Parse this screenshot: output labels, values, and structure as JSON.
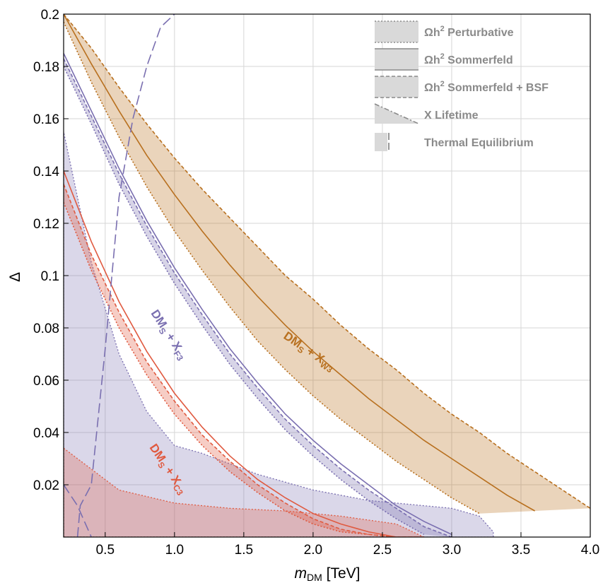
{
  "chart_data": {
    "type": "area",
    "xlabel_main": "m",
    "xlabel_sub": "DM",
    "xlabel_unit": " [TeV]",
    "ylabel": "Δ",
    "xlim": [
      0.2,
      4.0
    ],
    "ylim": [
      0.0,
      0.2
    ],
    "grid": true,
    "legend_position": "top-right",
    "x_ticks": [
      0.5,
      1.0,
      1.5,
      2.0,
      2.5,
      3.0,
      3.5,
      4.0
    ],
    "x_tick_labels": [
      "0.5",
      "1.0",
      "1.5",
      "2.0",
      "2.5",
      "3.0",
      "3.5",
      "4.0"
    ],
    "y_ticks": [
      0.02,
      0.04,
      0.06,
      0.08,
      0.1,
      0.12,
      0.14,
      0.16,
      0.18,
      0.2
    ],
    "y_tick_labels": [
      "0.02",
      "0.04",
      "0.06",
      "0.08",
      "0.1",
      "0.12",
      "0.14",
      "0.16",
      "0.18",
      "0.2"
    ],
    "colors": {
      "purple": "#7a6fb0",
      "orange": "#b8701f",
      "red": "#e05a40",
      "legend_gray": "#8a8a8a"
    },
    "legend": [
      {
        "label": "Ωh",
        "sup": "2",
        "rest": " Perturbative",
        "style": "dotted"
      },
      {
        "label": "Ωh",
        "sup": "2",
        "rest": " Sommerfeld",
        "style": "solid"
      },
      {
        "label": "Ωh",
        "sup": "2",
        "rest": " Sommerfeld + BSF",
        "style": "dashed"
      },
      {
        "label": "X Lifetime",
        "sup": "",
        "rest": "",
        "style": "dot-dash"
      },
      {
        "label": "Thermal Equilibrium",
        "sup": "",
        "rest": "",
        "style": "long-dash"
      }
    ],
    "annotations": [
      {
        "main": "DM",
        "sub1": "S",
        "mid": " + X",
        "sub2": "F3",
        "color": "#7a6fb0"
      },
      {
        "main": "DM",
        "sub1": "S",
        "mid": " + X",
        "sub2": "W3",
        "color": "#b8701f"
      },
      {
        "main": "DM",
        "sub1": "S",
        "mid": " + X",
        "sub2": "C3",
        "color": "#e05a40"
      }
    ],
    "series": [
      {
        "model_index": 0,
        "color": "#b8701f",
        "curves": [
          {
            "style": "dotted",
            "x": [
              0.2,
              0.4,
              0.6,
              0.8,
              1.0,
              1.2,
              1.4,
              1.6,
              1.8,
              2.0,
              2.2,
              2.4,
              2.6,
              2.8,
              3.0,
              3.2
            ],
            "y": [
              0.197,
              0.174,
              0.153,
              0.134,
              0.117,
              0.102,
              0.088,
              0.075,
              0.064,
              0.054,
              0.045,
              0.037,
              0.029,
              0.022,
              0.015,
              0.009
            ]
          },
          {
            "style": "solid",
            "x": [
              0.2,
              0.4,
              0.6,
              0.8,
              1.0,
              1.2,
              1.4,
              1.6,
              1.8,
              2.0,
              2.2,
              2.4,
              2.6,
              2.8,
              3.0,
              3.2,
              3.4,
              3.6
            ],
            "y": [
              0.2,
              0.181,
              0.163,
              0.146,
              0.131,
              0.117,
              0.104,
              0.092,
              0.081,
              0.071,
              0.062,
              0.053,
              0.045,
              0.037,
              0.03,
              0.023,
              0.016,
              0.01
            ]
          },
          {
            "style": "dashed",
            "x": [
              0.2,
              0.4,
              0.6,
              0.8,
              1.0,
              1.2,
              1.4,
              1.6,
              1.8,
              2.0,
              2.2,
              2.4,
              2.6,
              2.8,
              3.0,
              3.2,
              3.4,
              3.6,
              3.8,
              4.0
            ],
            "y": [
              0.2,
              0.187,
              0.172,
              0.158,
              0.145,
              0.133,
              0.122,
              0.111,
              0.1,
              0.091,
              0.081,
              0.072,
              0.064,
              0.055,
              0.047,
              0.04,
              0.032,
              0.025,
              0.018,
              0.011
            ]
          }
        ]
      },
      {
        "model_index": 1,
        "color": "#7a6fb0",
        "curves": [
          {
            "style": "dotted",
            "x": [
              0.2,
              0.4,
              0.6,
              0.8,
              1.0,
              1.2,
              1.4,
              1.6,
              1.8,
              2.0,
              2.2,
              2.4,
              2.6,
              2.8
            ],
            "y": [
              0.18,
              0.158,
              0.135,
              0.115,
              0.097,
              0.081,
              0.066,
              0.053,
              0.041,
              0.031,
              0.022,
              0.014,
              0.007,
              0.001
            ]
          },
          {
            "style": "solid",
            "x": [
              0.2,
              0.4,
              0.6,
              0.8,
              1.0,
              1.2,
              1.4,
              1.6,
              1.8,
              2.0,
              2.2,
              2.4,
              2.6,
              2.8,
              3.0
            ],
            "y": [
              0.185,
              0.163,
              0.141,
              0.121,
              0.103,
              0.087,
              0.072,
              0.059,
              0.047,
              0.037,
              0.028,
              0.02,
              0.012,
              0.006,
              0.001
            ]
          },
          {
            "style": "dashed",
            "x": [
              0.2,
              0.4,
              0.6,
              0.8,
              1.0,
              1.2,
              1.4,
              1.6,
              1.8,
              2.0,
              2.2,
              2.4,
              2.6,
              2.8,
              3.0
            ],
            "y": [
              0.183,
              0.161,
              0.139,
              0.119,
              0.101,
              0.085,
              0.07,
              0.057,
              0.045,
              0.035,
              0.026,
              0.018,
              0.011,
              0.004,
              0.0
            ]
          }
        ]
      },
      {
        "model_index": 2,
        "color": "#e05a40",
        "curves": [
          {
            "style": "dotted",
            "x": [
              0.2,
              0.4,
              0.6,
              0.8,
              1.0,
              1.2,
              1.4,
              1.6,
              1.8,
              2.0,
              2.2,
              2.4,
              2.6
            ],
            "y": [
              0.128,
              0.102,
              0.08,
              0.062,
              0.047,
              0.035,
              0.025,
              0.017,
              0.01,
              0.005,
              0.002,
              0.001,
              0.0
            ]
          },
          {
            "style": "solid",
            "x": [
              0.2,
              0.4,
              0.6,
              0.8,
              1.0,
              1.2,
              1.4,
              1.6,
              1.8,
              2.0,
              2.2,
              2.4,
              2.6,
              2.8
            ],
            "y": [
              0.14,
              0.113,
              0.09,
              0.071,
              0.055,
              0.042,
              0.031,
              0.022,
              0.015,
              0.009,
              0.005,
              0.002,
              0.0,
              0.0
            ]
          },
          {
            "style": "dashed",
            "x": [
              0.2,
              0.4,
              0.6,
              0.8,
              1.0,
              1.2,
              1.4,
              1.6,
              1.8,
              2.0,
              2.2,
              2.4,
              2.6,
              2.8
            ],
            "y": [
              0.135,
              0.108,
              0.086,
              0.067,
              0.052,
              0.039,
              0.029,
              0.02,
              0.013,
              0.007,
              0.003,
              0.001,
              0.0,
              0.0
            ]
          }
        ]
      }
    ],
    "lifetime_regions": [
      {
        "model_index": 1,
        "color": "#7a6fb0",
        "x": [
          0.2,
          0.4,
          0.6,
          0.8,
          1.0,
          1.2,
          1.4,
          1.6,
          1.8,
          2.0,
          2.2,
          2.4,
          2.6,
          2.8,
          3.0,
          3.2,
          3.3
        ],
        "y": [
          0.155,
          0.105,
          0.07,
          0.048,
          0.035,
          0.032,
          0.028,
          0.024,
          0.021,
          0.018,
          0.016,
          0.014,
          0.013,
          0.012,
          0.011,
          0.008,
          0.002
        ]
      },
      {
        "model_index": 2,
        "color": "#e05a40",
        "x": [
          0.2,
          0.6,
          1.0,
          1.4,
          1.8,
          2.2,
          2.6,
          2.8
        ],
        "y": [
          0.034,
          0.018,
          0.013,
          0.011,
          0.01,
          0.008,
          0.005,
          0.0
        ]
      }
    ],
    "thermal_equilibrium": [
      {
        "model_index": 1,
        "x": [
          0.3,
          0.32,
          0.4,
          0.5,
          0.6,
          0.7,
          0.8,
          0.9,
          1.0
        ],
        "y": [
          0.0,
          0.012,
          0.02,
          0.072,
          0.13,
          0.16,
          0.18,
          0.195,
          0.2
        ]
      },
      {
        "model_index": 2,
        "x": [
          0.2,
          0.3,
          0.4
        ],
        "y": [
          0.02,
          0.012,
          0.0
        ]
      }
    ]
  }
}
